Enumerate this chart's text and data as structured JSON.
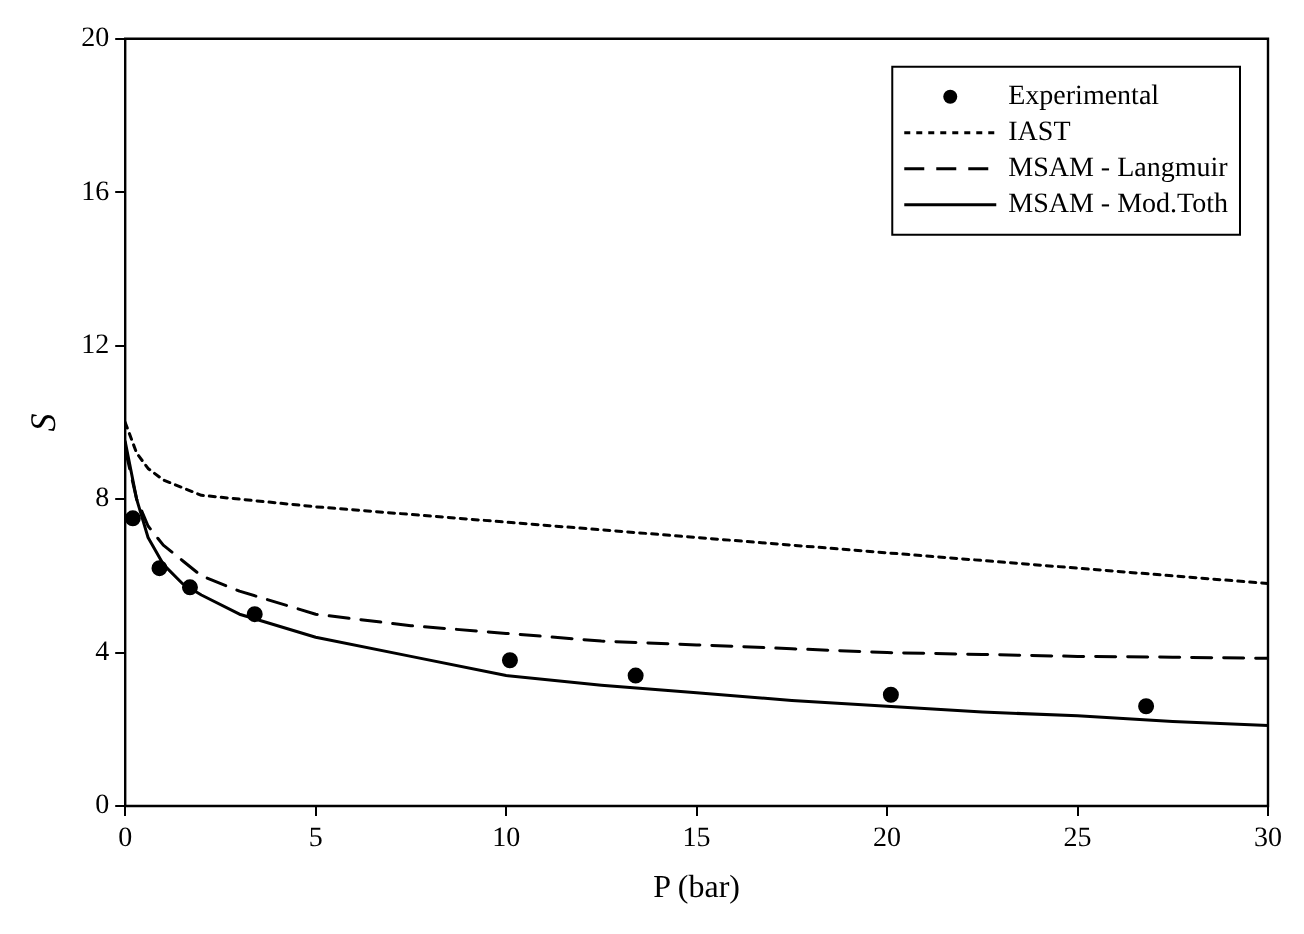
{
  "chart_data": {
    "type": "line",
    "xlabel": "P (bar)",
    "ylabel": "S",
    "xlim": [
      0,
      30
    ],
    "xticks": [
      0,
      5,
      10,
      15,
      20,
      25,
      30
    ],
    "ylim": [
      0,
      20
    ],
    "yticks": [
      0,
      4,
      8,
      12,
      16,
      20
    ],
    "grid": false,
    "legend": "top right",
    "series": [
      {
        "name": "Experimental",
        "type": "scatter",
        "marker": "circle",
        "color": "#000000",
        "x": [
          0.2,
          0.9,
          1.7,
          3.4,
          10.1,
          13.4,
          20.1,
          26.8
        ],
        "values": [
          7.5,
          6.2,
          5.7,
          5.0,
          3.8,
          3.4,
          2.9,
          2.6
        ]
      },
      {
        "name": "IAST",
        "line_style": "dotted",
        "color": "#000000",
        "x": [
          0,
          0.3,
          0.6,
          1,
          1.5,
          2,
          3,
          5,
          7.5,
          10,
          12.5,
          15,
          17.5,
          20,
          22.5,
          25,
          27.5,
          30
        ],
        "values": [
          10.0,
          9.2,
          8.8,
          8.5,
          8.3,
          8.1,
          8.0,
          7.8,
          7.6,
          7.4,
          7.2,
          7.0,
          6.8,
          6.6,
          6.4,
          6.2,
          6.0,
          5.8
        ]
      },
      {
        "name": "MSAM - Langmuir",
        "line_style": "dashed",
        "color": "#000000",
        "x": [
          0,
          0.3,
          0.6,
          1,
          1.5,
          2,
          3,
          5,
          7.5,
          10,
          12.5,
          15,
          17.5,
          20,
          22.5,
          25,
          27.5,
          30
        ],
        "values": [
          9.3,
          8.0,
          7.3,
          6.8,
          6.4,
          6.0,
          5.6,
          5.0,
          4.7,
          4.5,
          4.3,
          4.2,
          4.1,
          4.0,
          3.95,
          3.9,
          3.88,
          3.85
        ]
      },
      {
        "name": "MSAM - Mod.Toth",
        "line_style": "solid",
        "color": "#000000",
        "x": [
          0,
          0.3,
          0.6,
          1,
          1.5,
          2,
          3,
          5,
          7.5,
          10,
          12.5,
          15,
          17.5,
          20,
          22.5,
          25,
          27.5,
          30
        ],
        "values": [
          9.5,
          8.0,
          7.0,
          6.3,
          5.8,
          5.5,
          5.0,
          4.4,
          3.9,
          3.4,
          3.15,
          2.95,
          2.75,
          2.6,
          2.45,
          2.35,
          2.2,
          2.1
        ]
      }
    ]
  }
}
